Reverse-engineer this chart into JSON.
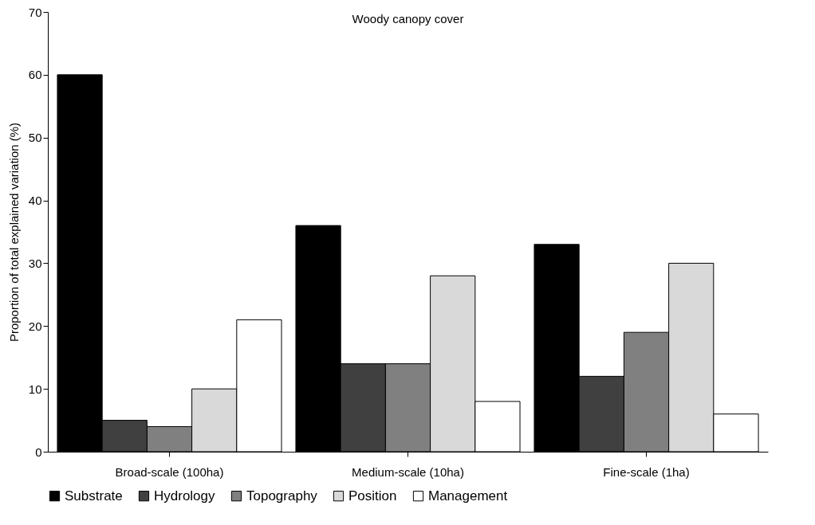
{
  "chart_data": {
    "type": "bar",
    "title": "Woody canopy cover",
    "ylabel": "Proportion of total explained variation (%)",
    "categories": [
      "Broad-scale (100ha)",
      "Medium-scale (10ha)",
      "Fine-scale (1ha)"
    ],
    "series": [
      {
        "name": "Substrate",
        "color": "#000000",
        "values": [
          60,
          36,
          33
        ]
      },
      {
        "name": "Hydrology",
        "color": "#404040",
        "values": [
          5,
          14,
          12
        ]
      },
      {
        "name": "Topography",
        "color": "#808080",
        "values": [
          4,
          14,
          19
        ]
      },
      {
        "name": "Position",
        "color": "#d9d9d9",
        "values": [
          10,
          28,
          30
        ]
      },
      {
        "name": "Management",
        "color": "#ffffff",
        "values": [
          21,
          8,
          6
        ]
      }
    ],
    "ylim": [
      0,
      70
    ],
    "yticks": [
      0,
      10,
      20,
      30,
      40,
      50,
      60,
      70
    ],
    "grid": false,
    "legend": "bottom"
  }
}
